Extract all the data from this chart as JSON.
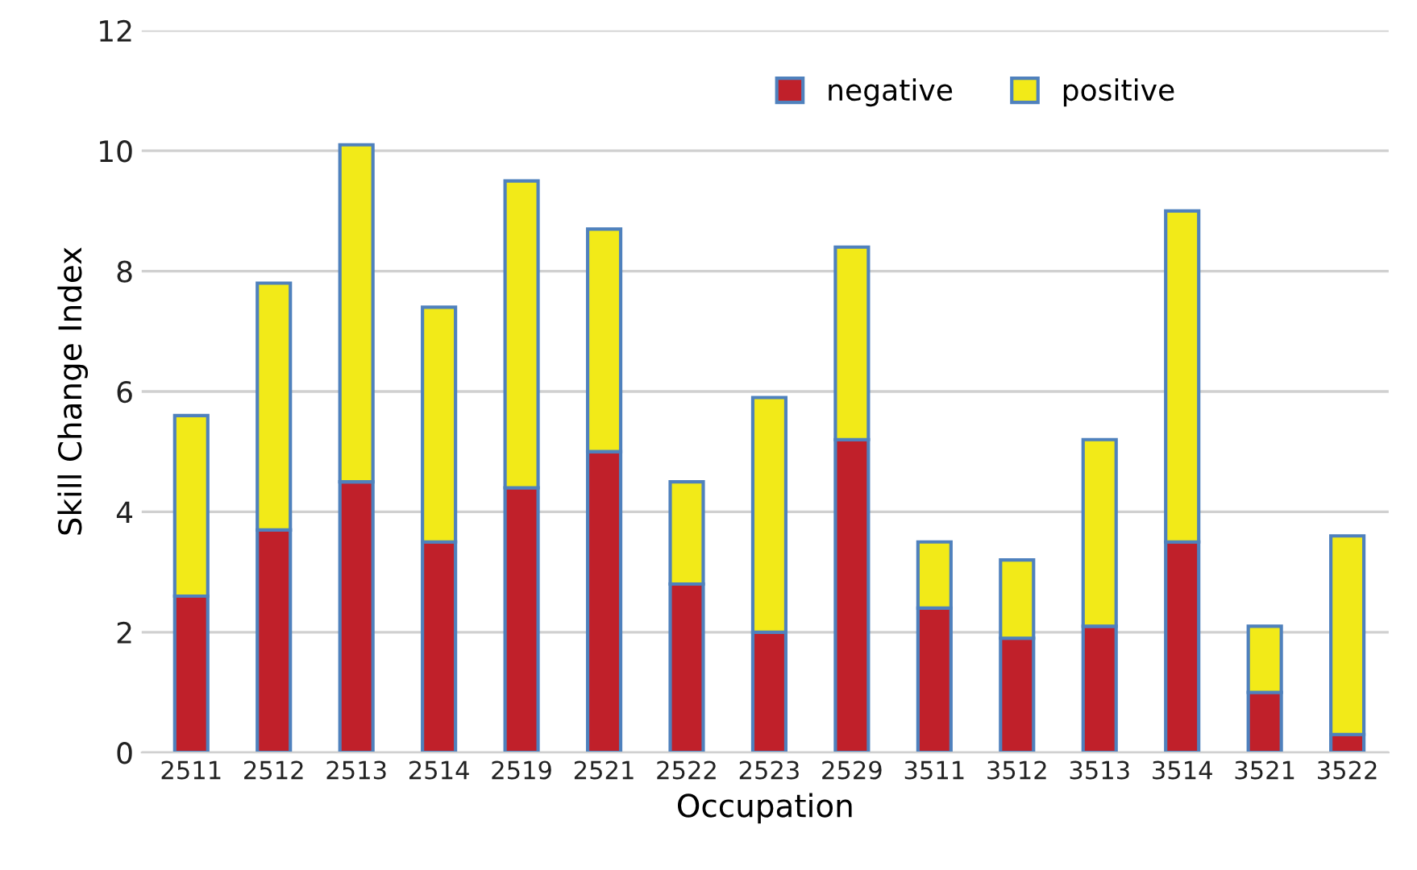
{
  "chart_data": {
    "type": "bar",
    "stacked": true,
    "xlabel": "Occupation",
    "ylabel": "Skill Change Index",
    "categories": [
      "2511",
      "2512",
      "2513",
      "2514",
      "2519",
      "2521",
      "2522",
      "2523",
      "2529",
      "3511",
      "3512",
      "3513",
      "3514",
      "3521",
      "3522"
    ],
    "series": [
      {
        "name": "negative",
        "color": "#c0202a",
        "values": [
          2.6,
          3.7,
          4.5,
          3.5,
          4.4,
          5.0,
          2.8,
          2.0,
          5.2,
          2.4,
          1.9,
          2.1,
          3.5,
          1.0,
          0.3
        ]
      },
      {
        "name": "positive",
        "color": "#f2ea18",
        "values": [
          3.0,
          4.1,
          5.6,
          3.9,
          5.1,
          3.7,
          1.7,
          3.9,
          3.2,
          1.1,
          1.3,
          3.1,
          5.5,
          1.1,
          3.3
        ]
      }
    ],
    "ylim": [
      0,
      12
    ],
    "yticks": [
      0,
      2,
      4,
      6,
      8,
      10,
      12
    ],
    "grid": "y",
    "legend": "top right"
  }
}
